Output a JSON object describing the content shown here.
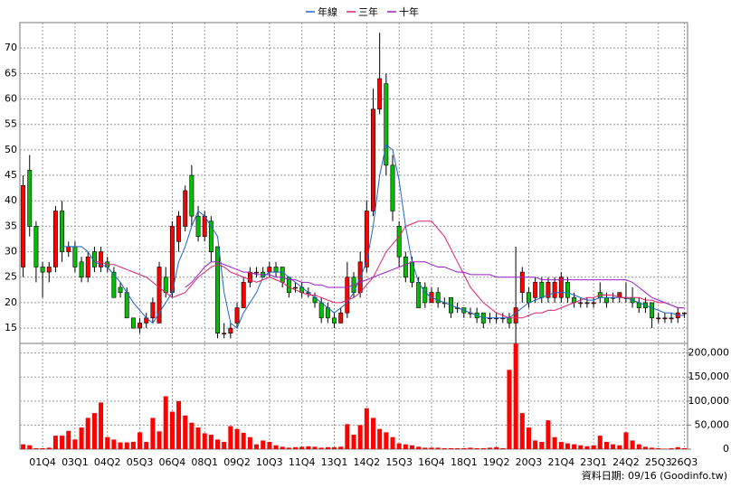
{
  "chart_data": {
    "type": "candlestick",
    "legend": "top",
    "grid": true,
    "footnote": "資料日期: 09/16 (Goodinfo.tw)",
    "up_color": "#ff0000",
    "down_color": "#00c000",
    "categories": [
      null,
      null,
      null,
      "01Q4",
      null,
      null,
      null,
      null,
      "03Q1",
      null,
      null,
      null,
      null,
      "04Q2",
      null,
      null,
      null,
      null,
      "05Q3",
      null,
      null,
      null,
      null,
      "06Q4",
      null,
      null,
      null,
      null,
      "08Q1",
      null,
      null,
      null,
      null,
      "09Q2",
      null,
      null,
      null,
      null,
      "10Q3",
      null,
      null,
      null,
      null,
      "11Q4",
      null,
      null,
      null,
      null,
      "13Q1",
      null,
      null,
      null,
      null,
      "14Q2",
      null,
      null,
      null,
      null,
      "15Q3",
      null,
      null,
      null,
      null,
      "16Q4",
      null,
      null,
      null,
      null,
      "18Q1",
      null,
      null,
      null,
      null,
      "19Q2",
      null,
      null,
      null,
      null,
      "20Q3",
      null,
      null,
      null,
      null,
      "21Q4",
      null,
      null,
      null,
      null,
      "23Q1",
      null,
      null,
      null,
      null,
      "24Q2",
      null,
      null,
      null,
      null,
      "25Q3",
      null,
      null,
      null,
      "26Q3"
    ],
    "open": [
      27,
      46,
      35,
      27,
      26,
      27,
      38,
      30,
      31,
      28,
      25,
      30,
      27,
      28,
      26,
      23,
      22,
      17,
      15,
      16,
      17,
      16,
      25,
      22,
      32,
      35,
      45,
      37,
      33,
      36,
      31,
      14,
      14,
      16,
      19,
      24,
      26,
      26,
      26,
      27,
      27,
      25,
      23,
      23,
      22,
      21,
      20,
      19,
      17,
      16,
      18,
      25,
      22,
      27,
      38,
      58,
      63,
      47,
      35,
      29,
      28,
      24,
      23,
      20,
      22,
      20,
      21,
      19,
      19,
      18,
      18,
      18,
      17,
      17,
      17,
      17,
      16,
      22,
      22,
      21,
      24,
      21,
      21,
      21,
      24,
      21,
      20,
      20,
      20,
      22,
      21,
      21,
      21,
      21,
      21,
      20,
      20,
      20,
      17,
      17,
      17,
      17,
      18
    ],
    "high": [
      45,
      49,
      36,
      28,
      28,
      39,
      40,
      32,
      32,
      29,
      30,
      31,
      31,
      29,
      27,
      24,
      23,
      17,
      17,
      18,
      21,
      28,
      27,
      36,
      38,
      43,
      47,
      39,
      38,
      37,
      31,
      16,
      16,
      20,
      25,
      27,
      27,
      27,
      28,
      28,
      27,
      25,
      24,
      24,
      23,
      22,
      21,
      20,
      18,
      19,
      28,
      26,
      30,
      40,
      62,
      73,
      65,
      49,
      36,
      30,
      29,
      25,
      24,
      23,
      23,
      21,
      21,
      20,
      19,
      19,
      19,
      18,
      18,
      18,
      18,
      18,
      31,
      27,
      23,
      25,
      25,
      25,
      25,
      26,
      25,
      22,
      21,
      21,
      21,
      24,
      22,
      22,
      22,
      24,
      23,
      21,
      21,
      20,
      18,
      18,
      18,
      19,
      18
    ],
    "low": [
      25,
      33,
      24,
      21,
      24,
      26,
      28,
      29,
      26,
      24,
      24,
      26,
      26,
      26,
      21,
      21,
      17,
      15,
      14,
      15,
      16,
      16,
      21,
      21,
      30,
      34,
      35,
      32,
      32,
      28,
      13,
      13,
      13,
      15,
      19,
      23,
      25,
      25,
      25,
      25,
      23,
      21,
      22,
      21,
      21,
      19,
      16,
      16,
      15,
      16,
      17,
      21,
      21,
      26,
      37,
      57,
      45,
      36,
      27,
      24,
      23,
      19,
      19,
      20,
      19,
      19,
      17,
      18,
      17,
      17,
      16,
      15,
      16,
      16,
      16,
      15,
      12,
      20,
      19,
      20,
      20,
      20,
      20,
      20,
      20,
      19,
      19,
      19,
      19,
      20,
      19,
      20,
      20,
      20,
      19,
      18,
      18,
      15,
      16,
      16,
      16,
      16,
      17
    ],
    "close": [
      43,
      35,
      27,
      26,
      27,
      38,
      30,
      31,
      27,
      25,
      29,
      27,
      30,
      27,
      21,
      22,
      17,
      15,
      16,
      17,
      20,
      27,
      22,
      35,
      37,
      42,
      37,
      33,
      37,
      30,
      14,
      14,
      15,
      19,
      24,
      26,
      26,
      25,
      27,
      26,
      24,
      22,
      23,
      22,
      22,
      20,
      17,
      17,
      16,
      18,
      25,
      22,
      28,
      38,
      58,
      64,
      47,
      38,
      29,
      25,
      24,
      19,
      20,
      22,
      20,
      20,
      18,
      19,
      18,
      18,
      17,
      16,
      17,
      17,
      17,
      16,
      19,
      26,
      20,
      24,
      21,
      24,
      24,
      25,
      21,
      20,
      20,
      20,
      20,
      21,
      20,
      21,
      22,
      21,
      20,
      19,
      19,
      17,
      17,
      17,
      17,
      18,
      18
    ],
    "ylim": [
      12,
      75
    ],
    "yticks": [
      15,
      20,
      25,
      30,
      35,
      40,
      45,
      50,
      55,
      60,
      65,
      70
    ],
    "series": [
      {
        "name": "年線",
        "color": "#1e64c8",
        "values": [
          null,
          null,
          null,
          null,
          null,
          null,
          31,
          31,
          31,
          31,
          30,
          28,
          27.5,
          27,
          25.5,
          24,
          22,
          20,
          18.5,
          17,
          16,
          18,
          20,
          22,
          28,
          31,
          35,
          38,
          37,
          35,
          33,
          22,
          16,
          15,
          18,
          20,
          22,
          25,
          26,
          26,
          26,
          25,
          24,
          23,
          22,
          21,
          20,
          19,
          18,
          19,
          20,
          22,
          25,
          28,
          35,
          45,
          51,
          50,
          44,
          35,
          28,
          24,
          22,
          21,
          20.5,
          20,
          19.5,
          19,
          18.5,
          18,
          17.5,
          17,
          17,
          17,
          17,
          17,
          18,
          19,
          20,
          20.5,
          21,
          21.5,
          22,
          22,
          22,
          21.5,
          21,
          20.5,
          20.5,
          21,
          21,
          21,
          21,
          21,
          20.5,
          20,
          19.5,
          19,
          18.5,
          18,
          18,
          17.5,
          17.5
        ]
      },
      {
        "name": "三年",
        "color": "#e0206e",
        "values": [
          null,
          null,
          null,
          null,
          null,
          null,
          null,
          null,
          null,
          null,
          null,
          28,
          28,
          27.5,
          27.5,
          27,
          26.5,
          26,
          25.5,
          25,
          24,
          23,
          22,
          21,
          21.5,
          22,
          23.5,
          25,
          26,
          27,
          27.5,
          27,
          26,
          25.5,
          25,
          24.5,
          24,
          24.5,
          25,
          24.5,
          24,
          23,
          22.5,
          22,
          21.5,
          21.5,
          21,
          20.5,
          20,
          20,
          20.5,
          21,
          22,
          23.5,
          25,
          27.5,
          30,
          31.5,
          33,
          35,
          35.5,
          36,
          36,
          36,
          34.5,
          33,
          30.5,
          28,
          25.5,
          23,
          21.5,
          20,
          19,
          18,
          17.5,
          17,
          17,
          17,
          17.5,
          18,
          18,
          18.5,
          18.5,
          19,
          19.5,
          20,
          20.5,
          21,
          21,
          21.5,
          21.5,
          21.5,
          21,
          21,
          21,
          21,
          20.5,
          20.5,
          20,
          20,
          19.5,
          19,
          19
        ]
      },
      {
        "name": "十年",
        "color": "#9a1fc8",
        "values": [
          null,
          null,
          null,
          null,
          null,
          null,
          null,
          null,
          null,
          null,
          null,
          null,
          null,
          null,
          null,
          null,
          null,
          null,
          null,
          null,
          null,
          null,
          null,
          null,
          null,
          23,
          24,
          25.5,
          27,
          28,
          28,
          27.5,
          27,
          26.5,
          26,
          26,
          25.5,
          25.5,
          25.5,
          25,
          25,
          24.5,
          24.5,
          24,
          24,
          23.5,
          23.5,
          23,
          23,
          23,
          23,
          23.5,
          24,
          24.5,
          25,
          25.5,
          26,
          26.5,
          27,
          27.5,
          28,
          28,
          28,
          27.5,
          27,
          27,
          26.5,
          26,
          26,
          25.5,
          25.5,
          25.5,
          25.5,
          25,
          25,
          25,
          25,
          25,
          25,
          25,
          24.5,
          24.5,
          24.5,
          24.5,
          24.5,
          24.5,
          24.5,
          24.5,
          24.5,
          24.5,
          24.5,
          24.5,
          24.5,
          24.5,
          24,
          23,
          22,
          21,
          20.5,
          20,
          19.5,
          19,
          19
        ]
      }
    ],
    "volume": {
      "color": "#ff0000",
      "values": [
        10000,
        8000,
        2000,
        2000,
        3000,
        28000,
        28000,
        38000,
        20000,
        45000,
        65000,
        75000,
        97000,
        25000,
        20000,
        14000,
        14000,
        15000,
        35000,
        15000,
        65000,
        37000,
        110000,
        78000,
        100000,
        70000,
        55000,
        45000,
        33000,
        30000,
        20000,
        15000,
        48000,
        42000,
        34000,
        25000,
        10000,
        18000,
        15000,
        8000,
        5000,
        3000,
        4000,
        5000,
        6000,
        5000,
        3000,
        4000,
        4000,
        5000,
        52000,
        30000,
        50000,
        85000,
        65000,
        42000,
        35000,
        25000,
        12000,
        10000,
        8000,
        5000,
        3000,
        3000,
        3000,
        2000,
        2000,
        2000,
        2000,
        3000,
        2000,
        2000,
        3000,
        4000,
        2000,
        165000,
        220000,
        75000,
        45000,
        18000,
        15000,
        60000,
        25000,
        15000,
        12000,
        10000,
        8000,
        6000,
        8000,
        28000,
        15000,
        10000,
        8000,
        35000,
        18000,
        10000,
        5000,
        3000,
        2000,
        1000,
        2000,
        4000,
        2000
      ],
      "ylim": [
        0,
        220000
      ],
      "yticks": [
        0,
        {
          "value": 50000,
          "label": "50,000"
        },
        {
          "value": 100000,
          "label": "100,000"
        },
        {
          "value": 150000,
          "label": "150,000"
        },
        {
          "value": 200000,
          "label": "200,000"
        }
      ]
    }
  }
}
